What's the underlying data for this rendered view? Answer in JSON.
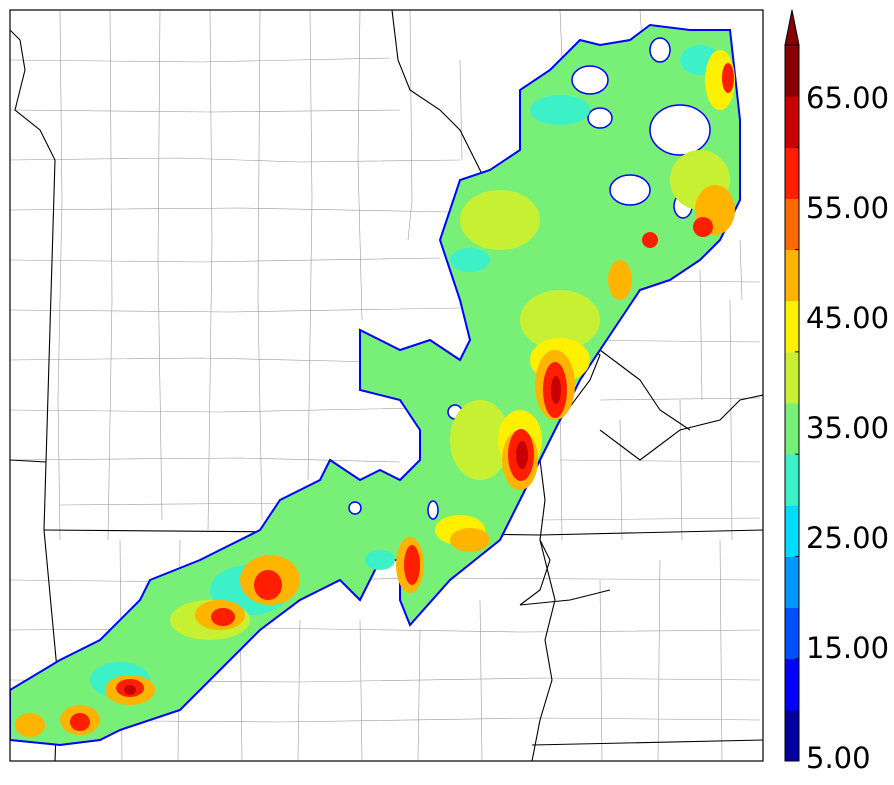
{
  "colorbar": {
    "colors": [
      "#00009e",
      "#0000ff",
      "#0050ff",
      "#0096ff",
      "#00dcff",
      "#3cf0c8",
      "#78f078",
      "#c8f032",
      "#fff000",
      "#ffb400",
      "#ff6a00",
      "#ff1e00",
      "#c80000",
      "#880000"
    ],
    "tick_labels": [
      "5.00",
      "15.00",
      "25.00",
      "35.00",
      "45.00",
      "55.00",
      "65.00"
    ],
    "extend": "max"
  },
  "field": {
    "description_colors": {
      "boundary": "#0000ff",
      "low": "#00dcff",
      "mid": "#78f078",
      "mid_high": "#c8f032",
      "high": "#fff000",
      "higher": "#ffb400",
      "peak": "#ff1e00",
      "max": "#c80000"
    }
  },
  "map": {
    "border_color": "#000000",
    "county_color": "#9a9a9a"
  }
}
